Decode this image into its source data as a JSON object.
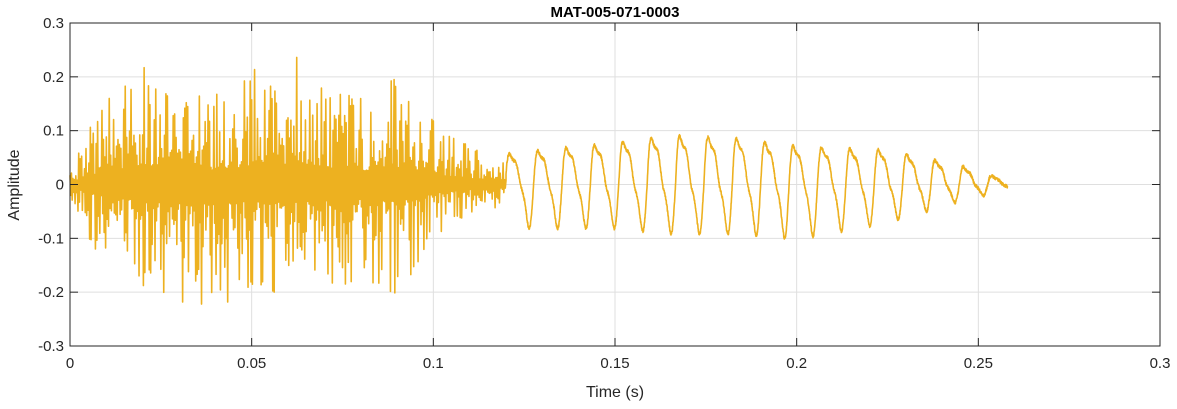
{
  "chart_data": {
    "type": "line",
    "title": "MAT-005-071-0003",
    "xlabel": "Time (s)",
    "ylabel": "Amplitude",
    "xlim": [
      0,
      0.3
    ],
    "ylim": [
      -0.3,
      0.3
    ],
    "xticks": [
      0,
      0.05,
      0.1,
      0.15,
      0.2,
      0.25,
      0.3
    ],
    "yticks": [
      -0.3,
      -0.2,
      -0.1,
      0,
      0.1,
      0.2,
      0.3
    ],
    "xtick_labels": [
      "0",
      "0.05",
      "0.1",
      "0.15",
      "0.2",
      "0.25",
      "0.3"
    ],
    "ytick_labels": [
      "-0.3",
      "-0.2",
      "-0.1",
      "0",
      "0.1",
      "0.2",
      "0.3"
    ],
    "grid": true,
    "series_color": "#EDB120",
    "series": [
      {
        "description_points": "envelope of a dense noisy burst 0–0.12 s followed by a decaying periodic oscillation until ~0.258 s",
        "envelope": {
          "x": [
            0,
            0.005,
            0.01,
            0.02,
            0.03,
            0.04,
            0.05,
            0.06,
            0.063,
            0.07,
            0.08,
            0.09,
            0.1,
            0.11,
            0.12
          ],
          "upper": [
            0.02,
            0.1,
            0.16,
            0.23,
            0.16,
            0.18,
            0.22,
            0.2,
            0.27,
            0.2,
            0.16,
            0.21,
            0.12,
            0.07,
            0.05
          ],
          "lower": [
            -0.02,
            -0.1,
            -0.15,
            -0.2,
            -0.22,
            -0.24,
            -0.2,
            -0.22,
            -0.19,
            -0.2,
            -0.18,
            -0.21,
            -0.1,
            -0.06,
            -0.04
          ]
        },
        "oscillation": {
          "x": [
            0.12,
            0.15,
            0.165,
            0.185,
            0.2,
            0.225,
            0.245,
            0.258
          ],
          "peak_max": [
            0.08,
            0.11,
            0.13,
            0.12,
            0.1,
            0.09,
            0.05,
            0.01
          ],
          "trough_min": [
            -0.08,
            -0.08,
            -0.09,
            -0.09,
            -0.1,
            -0.07,
            -0.03,
            -0.01
          ]
        }
      }
    ]
  }
}
